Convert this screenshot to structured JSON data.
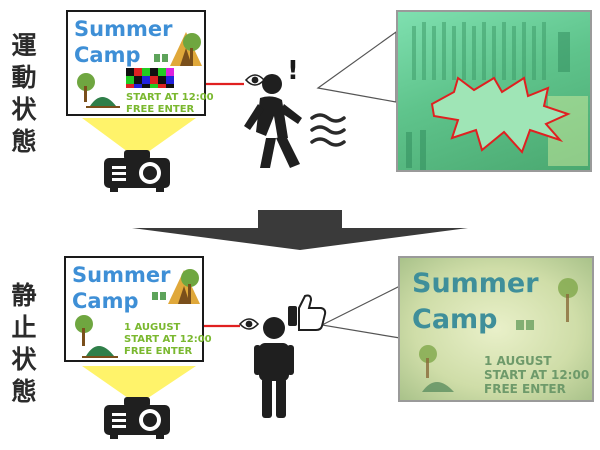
{
  "states": {
    "moving": {
      "label_chars": [
        "運",
        "動",
        "状",
        "態"
      ],
      "exclamation": "!"
    },
    "still": {
      "label_chars": [
        "静",
        "止",
        "状",
        "態"
      ]
    }
  },
  "poster": {
    "title_line1": "Summer",
    "title_line2": "Camp",
    "date": "1 AUGUST",
    "start": "START AT 12:00",
    "entry": "FREE ENTER"
  },
  "colors": {
    "title_blue": "#3e8fd6",
    "text_green": "#7ab82f",
    "arrow_red": "#e02020",
    "projector_beam": "#fff36a",
    "figure_dark": "#1f1f1f"
  },
  "icons": {
    "projector": "projector-icon",
    "eye": "eye-icon",
    "walking_person": "walking-person-icon",
    "standing_person": "standing-person-icon",
    "thumbs_up": "thumbs-up-icon",
    "motion_lines": "motion-lines-icon",
    "down_arrow": "transition-arrow-icon"
  }
}
